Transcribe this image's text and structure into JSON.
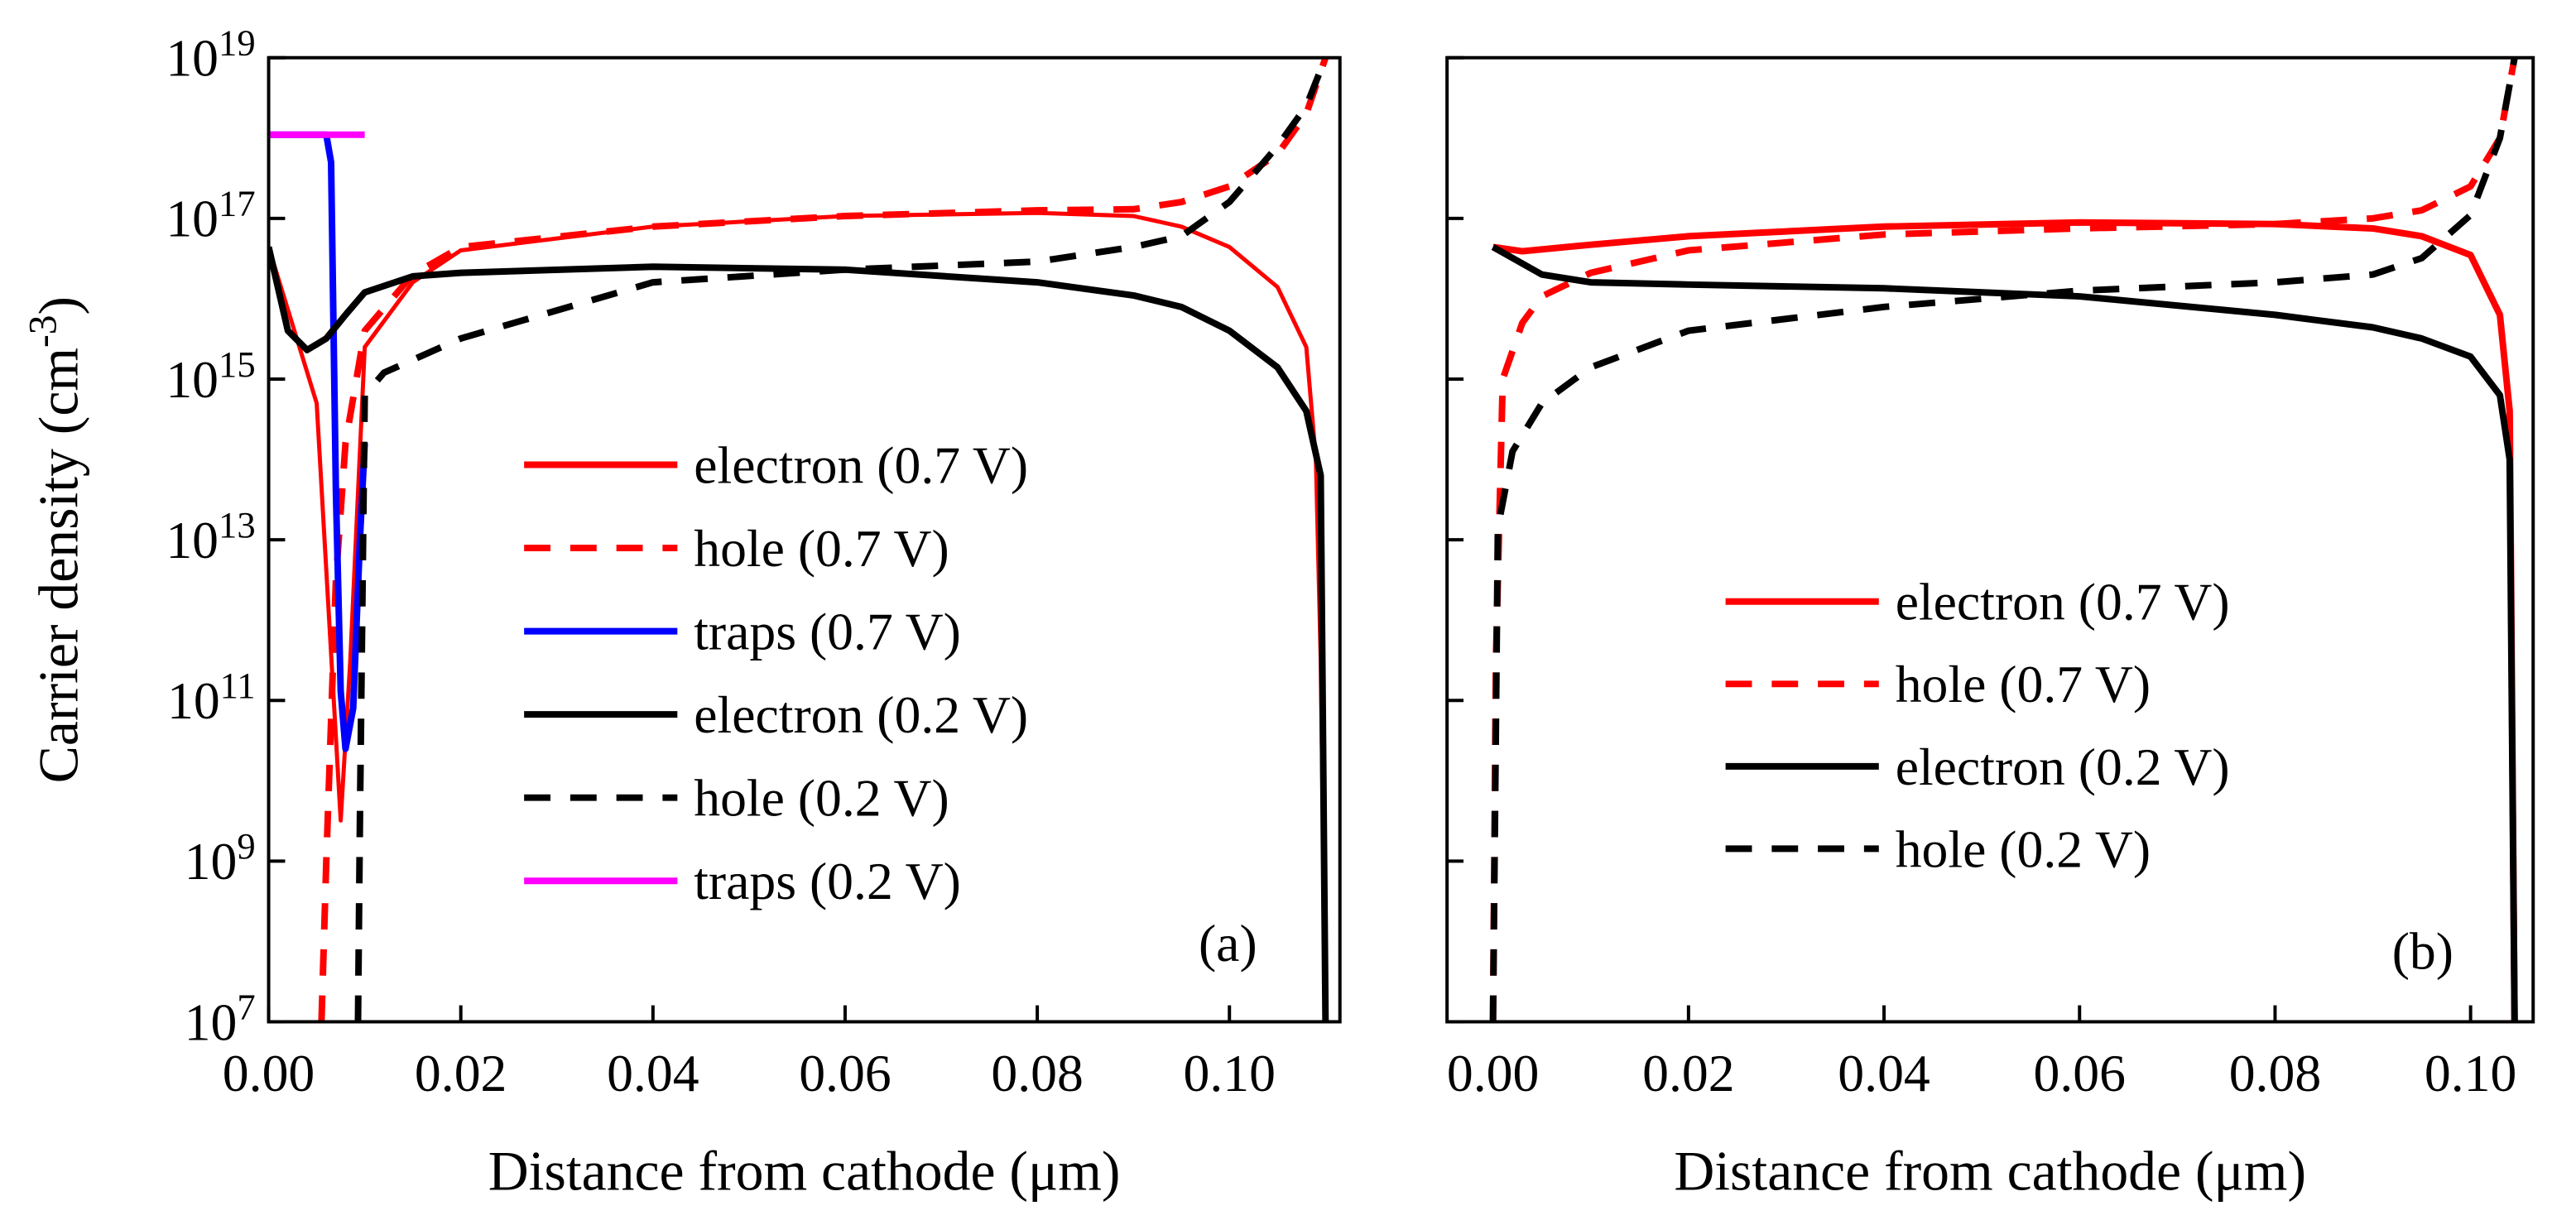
{
  "chart_data": [
    {
      "type": "line",
      "xlabel": "Distance from cathode (μm)",
      "ylabel": "Carrier density (cm^-3)",
      "annotation": "(a)",
      "log_y": true,
      "show_ytick_labels": true,
      "xlim": [
        0,
        0.1115
      ],
      "ylim": [
        10000000.0,
        1e+19
      ],
      "xticks": [
        {
          "value": 0,
          "label": "0.00"
        },
        {
          "value": 0.02,
          "label": "0.02"
        },
        {
          "value": 0.04,
          "label": "0.04"
        },
        {
          "value": 0.06,
          "label": "0.06"
        },
        {
          "value": 0.08,
          "label": "0.08"
        },
        {
          "value": 0.1,
          "label": "0.10"
        }
      ],
      "yticks": [
        {
          "value": 10000000.0,
          "label": "10^7"
        },
        {
          "value": 1000000000.0,
          "label": "10^9"
        },
        {
          "value": 100000000000.0,
          "label": "10^11"
        },
        {
          "value": 10000000000000.0,
          "label": "10^13"
        },
        {
          "value": 1000000000000000.0,
          "label": "10^15"
        },
        {
          "value": 1e+17,
          "label": "10^17"
        },
        {
          "value": 1e+19,
          "label": "10^19"
        }
      ],
      "series": [
        {
          "name": "electron (0.7 V)",
          "color": "#ff0000",
          "dashed": false,
          "x": [
            0,
            0.005,
            0.0075,
            0.0085,
            0.01,
            0.015,
            0.02,
            0.04,
            0.06,
            0.08,
            0.09,
            0.095,
            0.1,
            0.105,
            0.108,
            0.109,
            0.1095,
            0.11
          ],
          "values": [
            4.4e+16,
            500000000000000.0,
            3200000000.0,
            320000000000.0,
            2500000000000000.0,
            1.6e+16,
            4e+16,
            7.9e+16,
            1.07e+17,
            1.17e+17,
            1.07e+17,
            7.9e+16,
            4.4e+16,
            1.4e+16,
            2500000000000000.0,
            100000000000000.0,
            320000000000.0,
            10000000.0
          ]
        },
        {
          "name": "hole (0.7 V)",
          "color": "#ff0000",
          "dashed": true,
          "x": [
            0.0055,
            0.006,
            0.007,
            0.008,
            0.01,
            0.015,
            0.02,
            0.04,
            0.06,
            0.08,
            0.09,
            0.095,
            0.1,
            0.105,
            0.108,
            0.11
          ],
          "values": [
            10000000.0,
            1000000000.0,
            3200000000000.0,
            160000000000000.0,
            4000000000000000.0,
            2e+16,
            4.4e+16,
            7.9e+16,
            1.07e+17,
            1.26e+17,
            1.3e+17,
            1.6e+17,
            2.5e+17,
            6.3e+17,
            2e+18,
            1e+19
          ]
        },
        {
          "name": "traps (0.7 V)",
          "color": "#0000ff",
          "dashed": false,
          "x": [
            0,
            0.006,
            0.0065,
            0.007,
            0.0075,
            0.008,
            0.0088,
            0.0095,
            0.01
          ],
          "values": [
            1.1e+18,
            1.1e+18,
            5e+17,
            40000000000000.0,
            130000000000.0,
            25000000000.0,
            80000000000.0,
            10000000000000.0,
            160000000000000.0
          ]
        },
        {
          "name": "electron (0.2 V)",
          "color": "#000000",
          "dashed": false,
          "x": [
            0,
            0.002,
            0.004,
            0.006,
            0.008,
            0.01,
            0.015,
            0.02,
            0.04,
            0.06,
            0.08,
            0.09,
            0.095,
            0.1,
            0.105,
            0.108,
            0.1095,
            0.11
          ],
          "values": [
            4.4e+16,
            4000000000000000.0,
            2300000000000000.0,
            3200000000000000.0,
            6300000000000000.0,
            1.2e+16,
            1.9e+16,
            2.1e+16,
            2.5e+16,
            2.3e+16,
            1.6e+16,
            1.1e+16,
            7900000000000000.0,
            4000000000000000.0,
            1400000000000000.0,
            400000000000000.0,
            63000000000000.0,
            10000000.0
          ]
        },
        {
          "name": "hole (0.2 V)",
          "color": "#000000",
          "dashed": true,
          "x": [
            0.0093,
            0.0095,
            0.01,
            0.012,
            0.02,
            0.04,
            0.06,
            0.08,
            0.09,
            0.095,
            0.1,
            0.105,
            0.108,
            0.11
          ],
          "values": [
            10000000.0,
            3200000000.0,
            630000000000000.0,
            1200000000000000.0,
            3200000000000000.0,
            1.6e+16,
            2.3e+16,
            2.9e+16,
            4.4e+16,
            6e+16,
            1.6e+17,
            7.9e+17,
            2.5e+18,
            1e+19
          ]
        },
        {
          "name": "traps (0.2 V)",
          "color": "#ff00ff",
          "dashed": false,
          "x": [
            0,
            0.01
          ],
          "values": [
            1.1e+18,
            1.1e+18
          ]
        }
      ]
    },
    {
      "type": "line",
      "xlabel": "Distance from cathode (μm)",
      "annotation": "(b)",
      "log_y": true,
      "show_ytick_labels": false,
      "xlim": [
        -0.0047,
        0.1064
      ],
      "ylim": [
        10000000.0,
        1e+19
      ],
      "xticks": [
        {
          "value": 0,
          "label": "0.00"
        },
        {
          "value": 0.02,
          "label": "0.02"
        },
        {
          "value": 0.04,
          "label": "0.04"
        },
        {
          "value": 0.06,
          "label": "0.06"
        },
        {
          "value": 0.08,
          "label": "0.08"
        },
        {
          "value": 0.1,
          "label": "0.10"
        }
      ],
      "yticks": [
        10000000.0,
        1000000000.0,
        100000000000.0,
        10000000000000.0,
        1000000000000000.0,
        1e+17,
        1e+19
      ],
      "series": [
        {
          "name": "electron (0.7 V)",
          "color": "#ff0000",
          "dashed": false,
          "x": [
            0,
            0.003,
            0.01,
            0.02,
            0.04,
            0.06,
            0.08,
            0.09,
            0.095,
            0.1,
            0.103,
            0.104,
            0.1045
          ],
          "values": [
            4.4e+16,
            3.9e+16,
            4.7e+16,
            6e+16,
            7.9e+16,
            8.9e+16,
            8.5e+16,
            7.5e+16,
            6e+16,
            3.5e+16,
            6300000000000000.0,
            400000000000000.0,
            10000000.0
          ]
        },
        {
          "name": "hole (0.7 V)",
          "color": "#ff0000",
          "dashed": true,
          "x": [
            0,
            0.0003,
            0.001,
            0.003,
            0.005,
            0.01,
            0.02,
            0.04,
            0.06,
            0.08,
            0.09,
            0.095,
            0.1,
            0.103,
            0.1045
          ],
          "values": [
            10000000.0,
            320000000000.0,
            1000000000000000.0,
            5000000000000000.0,
            1.07e+16,
            2.1e+16,
            4e+16,
            6.3e+16,
            7.5e+16,
            8.5e+16,
            1e+17,
            1.26e+17,
            2.5e+17,
            1e+18,
            1e+19
          ]
        },
        {
          "name": "electron (0.2 V)",
          "color": "#000000",
          "dashed": false,
          "x": [
            0,
            0.005,
            0.01,
            0.02,
            0.04,
            0.06,
            0.08,
            0.09,
            0.095,
            0.1,
            0.103,
            0.104,
            0.1045
          ],
          "values": [
            4.4e+16,
            2e+16,
            1.6e+16,
            1.5e+16,
            1.35e+16,
            1.07e+16,
            6300000000000000.0,
            4400000000000000.0,
            3200000000000000.0,
            1900000000000000.0,
            630000000000000.0,
            100000000000000.0,
            10000000.0
          ]
        },
        {
          "name": "hole (0.2 V)",
          "color": "#000000",
          "dashed": true,
          "x": [
            0,
            0.0005,
            0.002,
            0.005,
            0.01,
            0.02,
            0.04,
            0.06,
            0.08,
            0.09,
            0.095,
            0.1,
            0.103,
            0.1045
          ],
          "values": [
            10000000.0,
            14000000000000.0,
            126000000000000.0,
            500000000000000.0,
            1400000000000000.0,
            4000000000000000.0,
            7900000000000000.0,
            1.26e+16,
            1.6e+16,
            2e+16,
            3.2e+16,
            1.1e+17,
            1e+18,
            1e+19
          ]
        }
      ]
    }
  ]
}
